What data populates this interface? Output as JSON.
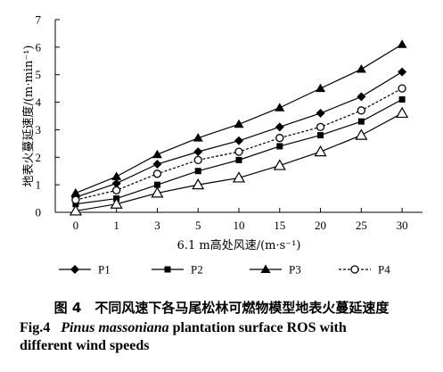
{
  "chart_data": {
    "type": "line",
    "xlabel": "6.1 m高处风速/(m·s⁻¹)",
    "ylabel": "地表火蔓延速度/(m·min⁻¹)",
    "categories": [
      "0",
      "1",
      "3",
      "5",
      "10",
      "15",
      "20",
      "25",
      "30"
    ],
    "ylim": [
      0,
      7
    ],
    "yticks": [
      "0",
      "1",
      "2",
      "3",
      "4",
      "5",
      "6",
      "7"
    ],
    "grid": false,
    "legend_placement": "bottom",
    "series": [
      {
        "name": "P1",
        "marker": "diamond-filled",
        "dashed": false,
        "values": [
          0.55,
          1.05,
          1.75,
          2.2,
          2.6,
          3.1,
          3.6,
          4.2,
          5.1
        ]
      },
      {
        "name": "P2",
        "marker": "square-filled",
        "dashed": false,
        "values": [
          0.3,
          0.5,
          1.0,
          1.5,
          1.9,
          2.4,
          2.8,
          3.3,
          4.1
        ]
      },
      {
        "name": "P3",
        "marker": "triangle-filled",
        "dashed": false,
        "values": [
          0.7,
          1.3,
          2.1,
          2.7,
          3.2,
          3.8,
          4.5,
          5.2,
          6.1
        ]
      },
      {
        "name": "P4",
        "marker": "circle-open",
        "dashed": true,
        "values": [
          0.45,
          0.8,
          1.4,
          1.9,
          2.2,
          2.7,
          3.1,
          3.7,
          4.5
        ]
      },
      {
        "name": "",
        "marker": "triangle-open",
        "dashed": false,
        "values": [
          0.05,
          0.3,
          0.7,
          1.0,
          1.25,
          1.7,
          2.2,
          2.8,
          3.6
        ]
      }
    ]
  },
  "caption": {
    "zh": "图 4　不同风速下各马尾松林可燃物模型地表火蔓延速度",
    "en_prefix": "Fig.4",
    "en_species": "Pinus massoniana",
    "en_rest_line1": "plantation surface ROS with",
    "en_line2": "different wind speeds"
  }
}
